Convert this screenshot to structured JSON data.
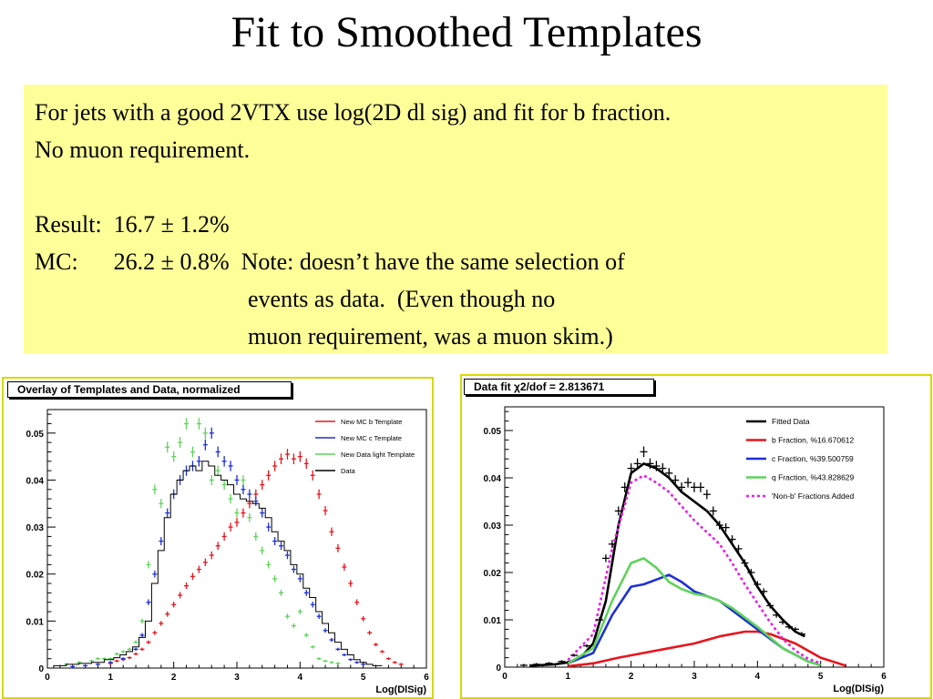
{
  "slide": {
    "title": "Fit to Smoothed Templates",
    "note_lines": [
      "For jets with a good 2VTX use log(2D dl sig) and fit for b fraction.",
      "No muon requirement.",
      "",
      "Result:  16.7 ± 1.2%",
      "MC:      26.2 ± 0.8%  Note: doesn’t have the same selection of",
      "                                    events as data.  (Even though no",
      "                                    muon requirement, was a muon skim.)"
    ]
  },
  "chart_data": [
    {
      "type": "scatter",
      "title": "Overlay of Templates and Data, normalized",
      "xlabel": "Log(DlSig)",
      "ylabel": "",
      "xlim": [
        0,
        6
      ],
      "ylim": [
        0,
        0.055
      ],
      "xticks": [
        "0",
        "1",
        "2",
        "3",
        "4",
        "5",
        "6"
      ],
      "yticks": [
        "0",
        "0.01",
        "0.02",
        "0.03",
        "0.04",
        "0.05"
      ],
      "legend_position": "top-right",
      "colors": {
        "b": "#e8141d",
        "c": "#1e2fd6",
        "light": "#5fd35a",
        "data": "#000000"
      },
      "series": [
        {
          "name": "New MC b Template",
          "style": "points",
          "x": [
            1.0,
            1.1,
            1.2,
            1.3,
            1.4,
            1.5,
            1.6,
            1.7,
            1.8,
            1.9,
            2.0,
            2.1,
            2.2,
            2.3,
            2.4,
            2.5,
            2.6,
            2.7,
            2.8,
            2.9,
            3.0,
            3.1,
            3.2,
            3.3,
            3.4,
            3.5,
            3.6,
            3.7,
            3.8,
            3.9,
            4.0,
            4.1,
            4.2,
            4.3,
            4.4,
            4.5,
            4.6,
            4.7,
            4.8,
            4.9,
            5.0,
            5.1,
            5.2,
            5.3,
            5.4,
            5.5,
            5.6
          ],
          "y": [
            0.001,
            0.0015,
            0.0018,
            0.0022,
            0.003,
            0.004,
            0.0055,
            0.0075,
            0.0095,
            0.0115,
            0.0135,
            0.0155,
            0.0175,
            0.0195,
            0.021,
            0.0225,
            0.024,
            0.026,
            0.028,
            0.03,
            0.031,
            0.033,
            0.035,
            0.037,
            0.039,
            0.041,
            0.043,
            0.0445,
            0.0455,
            0.0445,
            0.045,
            0.0435,
            0.041,
            0.037,
            0.0335,
            0.029,
            0.0255,
            0.0215,
            0.018,
            0.014,
            0.0105,
            0.0075,
            0.005,
            0.0035,
            0.002,
            0.0012,
            0.0008
          ]
        },
        {
          "name": "New MC c Template",
          "style": "points",
          "x": [
            0.4,
            0.6,
            0.8,
            1.0,
            1.2,
            1.4,
            1.5,
            1.6,
            1.7,
            1.8,
            1.9,
            2.0,
            2.1,
            2.2,
            2.3,
            2.4,
            2.5,
            2.6,
            2.7,
            2.8,
            2.9,
            3.0,
            3.1,
            3.2,
            3.3,
            3.4,
            3.5,
            3.6,
            3.7,
            3.8,
            3.9,
            4.0,
            4.1,
            4.2,
            4.3,
            4.4,
            4.5,
            4.6,
            4.7,
            4.8,
            4.9,
            5.0
          ],
          "y": [
            0.0003,
            0.0005,
            0.0008,
            0.0012,
            0.002,
            0.004,
            0.007,
            0.014,
            0.02,
            0.027,
            0.033,
            0.037,
            0.04,
            0.042,
            0.043,
            0.044,
            0.0475,
            0.05,
            0.046,
            0.044,
            0.043,
            0.04,
            0.038,
            0.037,
            0.0355,
            0.033,
            0.03,
            0.027,
            0.026,
            0.024,
            0.021,
            0.019,
            0.016,
            0.0135,
            0.011,
            0.008,
            0.006,
            0.004,
            0.0028,
            0.0018,
            0.0012,
            0.0008
          ]
        },
        {
          "name": "New Data light Template",
          "style": "points",
          "x": [
            0.3,
            0.5,
            0.7,
            0.8,
            0.9,
            1.0,
            1.1,
            1.2,
            1.3,
            1.4,
            1.5,
            1.6,
            1.7,
            1.8,
            1.9,
            2.0,
            2.1,
            2.2,
            2.3,
            2.4,
            2.5,
            2.6,
            2.7,
            2.8,
            2.9,
            3.0,
            3.1,
            3.2,
            3.3,
            3.4,
            3.5,
            3.6,
            3.7,
            3.8,
            3.9,
            4.0,
            4.1,
            4.2,
            4.3,
            4.4,
            4.5,
            4.6
          ],
          "y": [
            0.0008,
            0.0012,
            0.0015,
            0.002,
            0.002,
            0.002,
            0.003,
            0.0035,
            0.004,
            0.0055,
            0.01,
            0.022,
            0.038,
            0.035,
            0.047,
            0.045,
            0.048,
            0.052,
            0.046,
            0.052,
            0.05,
            0.04,
            0.042,
            0.039,
            0.036,
            0.033,
            0.04,
            0.032,
            0.028,
            0.025,
            0.022,
            0.019,
            0.016,
            0.011,
            0.009,
            0.012,
            0.007,
            0.0045,
            0.002,
            0.0015,
            0.0012,
            0.001
          ]
        },
        {
          "name": "Data",
          "style": "step",
          "x": [
            0.2,
            0.4,
            0.6,
            0.8,
            1.0,
            1.1,
            1.2,
            1.3,
            1.4,
            1.5,
            1.6,
            1.7,
            1.8,
            1.9,
            2.0,
            2.1,
            2.2,
            2.3,
            2.4,
            2.5,
            2.6,
            2.7,
            2.8,
            2.9,
            3.0,
            3.1,
            3.2,
            3.3,
            3.4,
            3.5,
            3.6,
            3.7,
            3.8,
            3.9,
            4.0,
            4.1,
            4.2,
            4.3,
            4.4,
            4.5,
            4.6,
            4.7,
            4.8,
            4.9,
            5.0,
            5.1,
            5.2
          ],
          "y": [
            0.0005,
            0.0008,
            0.001,
            0.0012,
            0.0018,
            0.0022,
            0.0028,
            0.0035,
            0.0045,
            0.0065,
            0.01,
            0.018,
            0.025,
            0.032,
            0.037,
            0.04,
            0.042,
            0.043,
            0.042,
            0.044,
            0.043,
            0.041,
            0.04,
            0.039,
            0.037,
            0.036,
            0.0355,
            0.035,
            0.034,
            0.032,
            0.029,
            0.027,
            0.025,
            0.022,
            0.02,
            0.017,
            0.015,
            0.012,
            0.0095,
            0.0075,
            0.0055,
            0.004,
            0.0028,
            0.0018,
            0.0012,
            0.0008,
            0.0005
          ]
        }
      ]
    },
    {
      "type": "line",
      "title": "Data fit χ2/dof = 2.813671",
      "xlabel": "Log(DlSig)",
      "ylabel": "",
      "xlim": [
        0,
        6
      ],
      "ylim": [
        0,
        0.055
      ],
      "xticks": [
        "0",
        "1",
        "2",
        "3",
        "4",
        "5",
        "6"
      ],
      "yticks": [
        "0",
        "0.01",
        "0.02",
        "0.03",
        "0.04",
        "0.05"
      ],
      "legend_position": "top-right",
      "colors": {
        "fit": "#000000",
        "b": "#e8141d",
        "c": "#1e2fd6",
        "q": "#5fd35a",
        "nonb": "#e81ee8"
      },
      "series": [
        {
          "name": "Fitted Data",
          "style": "solid",
          "x": [
            0.4,
            0.8,
            1.0,
            1.2,
            1.4,
            1.6,
            1.8,
            2.0,
            2.2,
            2.4,
            2.6,
            2.8,
            3.0,
            3.2,
            3.4,
            3.6,
            3.8,
            4.0,
            4.2,
            4.4,
            4.6,
            4.75
          ],
          "y": [
            0.0003,
            0.0006,
            0.001,
            0.002,
            0.005,
            0.014,
            0.03,
            0.041,
            0.043,
            0.042,
            0.04,
            0.037,
            0.035,
            0.033,
            0.03,
            0.026,
            0.022,
            0.017,
            0.013,
            0.01,
            0.0075,
            0.0065
          ]
        },
        {
          "name": "b Fraction, %16.670612",
          "style": "solid",
          "x": [
            1.0,
            1.4,
            1.8,
            2.2,
            2.6,
            3.0,
            3.4,
            3.8,
            4.0,
            4.2,
            4.6,
            5.0,
            5.4
          ],
          "y": [
            0.0002,
            0.0008,
            0.002,
            0.003,
            0.004,
            0.005,
            0.0065,
            0.0075,
            0.0075,
            0.007,
            0.005,
            0.002,
            0.0003
          ]
        },
        {
          "name": "c Fraction, %39.500759",
          "style": "solid",
          "x": [
            1.0,
            1.4,
            1.7,
            2.0,
            2.2,
            2.4,
            2.6,
            2.8,
            3.0,
            3.2,
            3.4,
            3.6,
            4.0,
            4.4,
            4.8,
            5.0
          ],
          "y": [
            0.0008,
            0.003,
            0.011,
            0.017,
            0.0175,
            0.0185,
            0.0195,
            0.018,
            0.016,
            0.015,
            0.014,
            0.012,
            0.008,
            0.004,
            0.0012,
            0.0004
          ]
        },
        {
          "name": "q Fraction, %43.828629",
          "style": "solid",
          "x": [
            1.0,
            1.4,
            1.7,
            2.0,
            2.2,
            2.4,
            2.6,
            2.8,
            3.0,
            3.2,
            3.4,
            3.6,
            4.0,
            4.4,
            4.8,
            5.0
          ],
          "y": [
            0.0008,
            0.004,
            0.014,
            0.022,
            0.023,
            0.021,
            0.018,
            0.0165,
            0.0155,
            0.015,
            0.014,
            0.0125,
            0.0085,
            0.004,
            0.0012,
            0.0004
          ]
        },
        {
          "name": "'Non-b' Fractions Added",
          "style": "dotted",
          "x": [
            1.0,
            1.4,
            1.7,
            2.0,
            2.2,
            2.4,
            2.6,
            2.8,
            3.0,
            3.2,
            3.4,
            3.6,
            3.8,
            4.0,
            4.2,
            4.4,
            4.6,
            4.8,
            5.0
          ],
          "y": [
            0.0015,
            0.007,
            0.025,
            0.039,
            0.0405,
            0.039,
            0.037,
            0.034,
            0.031,
            0.0285,
            0.026,
            0.022,
            0.0175,
            0.0135,
            0.0095,
            0.006,
            0.0035,
            0.0018,
            0.0008
          ]
        },
        {
          "name": "",
          "style": "crosses",
          "x": [
            0.3,
            0.5,
            0.7,
            0.9,
            1.1,
            1.3,
            1.5,
            1.6,
            1.7,
            1.8,
            1.9,
            2.0,
            2.1,
            2.2,
            2.3,
            2.4,
            2.5,
            2.6,
            2.7,
            2.8,
            2.9,
            3.0,
            3.1,
            3.2,
            3.3,
            3.4,
            3.5,
            3.6,
            3.7,
            3.8,
            3.9,
            4.0,
            4.1,
            4.2,
            4.3,
            4.4,
            4.5,
            4.6,
            4.7
          ],
          "y": [
            0.0004,
            0.0006,
            0.0008,
            0.0012,
            0.0025,
            0.0045,
            0.01,
            0.023,
            0.026,
            0.033,
            0.038,
            0.042,
            0.043,
            0.0455,
            0.043,
            0.0425,
            0.042,
            0.041,
            0.0395,
            0.038,
            0.039,
            0.038,
            0.038,
            0.0365,
            0.033,
            0.03,
            0.0295,
            0.027,
            0.025,
            0.022,
            0.02,
            0.0175,
            0.016,
            0.013,
            0.011,
            0.0095,
            0.0085,
            0.008,
            0.007
          ]
        }
      ]
    }
  ]
}
